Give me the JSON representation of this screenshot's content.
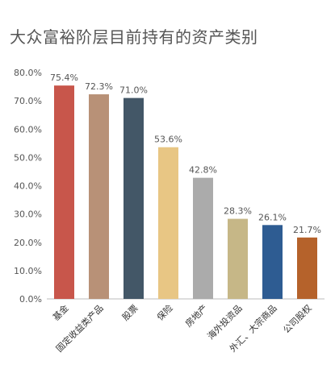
{
  "chart_data": {
    "type": "bar",
    "title": "大众富裕阶层目前持有的资产类别",
    "categories": [
      "基金",
      "固定收益类产品",
      "股票",
      "保险",
      "房地产",
      "海外投资品",
      "外汇、大宗商品",
      "公司股权"
    ],
    "values": [
      75.4,
      72.3,
      71.0,
      53.6,
      42.8,
      28.3,
      26.1,
      21.7
    ],
    "value_labels": [
      "75.4%",
      "72.3%",
      "71.0%",
      "53.6%",
      "42.8%",
      "28.3%",
      "26.1%",
      "21.7%"
    ],
    "colors": [
      "#C8564B",
      "#B89177",
      "#435767",
      "#E8C684",
      "#ABABAB",
      "#C6B787",
      "#2E5C92",
      "#B5622B"
    ],
    "ylim": [
      0,
      80
    ],
    "yticks": [
      0,
      10,
      20,
      30,
      40,
      50,
      60,
      70,
      80
    ],
    "ytick_labels": [
      "0.0%",
      "10.0%",
      "20.0%",
      "30.0%",
      "40.0%",
      "50.0%",
      "60.0%",
      "70.0%",
      "80.0%"
    ],
    "xlabel": "",
    "ylabel": "",
    "grid": false,
    "legend": "none"
  }
}
